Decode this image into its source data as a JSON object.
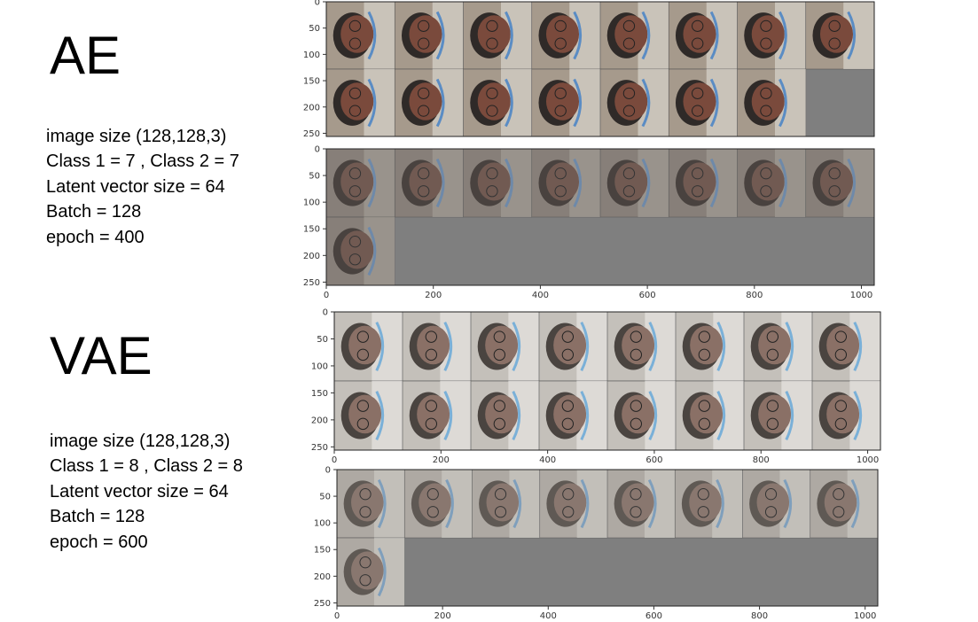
{
  "sections": [
    {
      "title": "AE",
      "params": [
        "image size (128,128,3)",
        "Class 1 = 7 , Class 2 = 7",
        "Latent vector size = 64",
        "Batch = 128",
        "epoch = 400"
      ],
      "panels": [
        {
          "name": "ae-input-grid",
          "y_ticks": [
            "0",
            "50",
            "100",
            "150",
            "200",
            "250"
          ],
          "x_ticks": [],
          "tiles_shown": 15,
          "tile_style": "face",
          "image_description": "Grid of rotated face image tiles"
        },
        {
          "name": "ae-output-grid",
          "y_ticks": [
            "0",
            "50",
            "100",
            "150",
            "200",
            "250"
          ],
          "x_ticks": [
            "0",
            "200",
            "400",
            "600",
            "800",
            "1000"
          ],
          "tiles_shown": 9,
          "tile_style": "face-noisy",
          "image_description": "Grid of reconstructed face image tiles"
        }
      ]
    },
    {
      "title": "VAE",
      "params": [
        "image size (128,128,3)",
        "Class 1 = 8 , Class 2 = 8",
        "Latent vector size = 64",
        "Batch = 128",
        "epoch = 600"
      ],
      "panels": [
        {
          "name": "vae-input-grid",
          "y_ticks": [
            "0",
            "50",
            "100",
            "150",
            "200",
            "250"
          ],
          "x_ticks": [
            "0",
            "200",
            "400",
            "600",
            "800",
            "1000"
          ],
          "tiles_shown": 16,
          "tile_style": "face-light",
          "image_description": "Grid of rotated face image tiles"
        },
        {
          "name": "vae-output-grid",
          "y_ticks": [
            "0",
            "50",
            "100",
            "150",
            "200",
            "250"
          ],
          "x_ticks": [
            "0",
            "200",
            "400",
            "600",
            "800",
            "1000"
          ],
          "tiles_shown": 9,
          "tile_style": "face-noisy-light",
          "image_description": "Grid of reconstructed face image tiles"
        }
      ]
    }
  ],
  "colors": {
    "empty_tile": "#7f7f7f",
    "tick": "#333333",
    "frame": "#222222"
  }
}
